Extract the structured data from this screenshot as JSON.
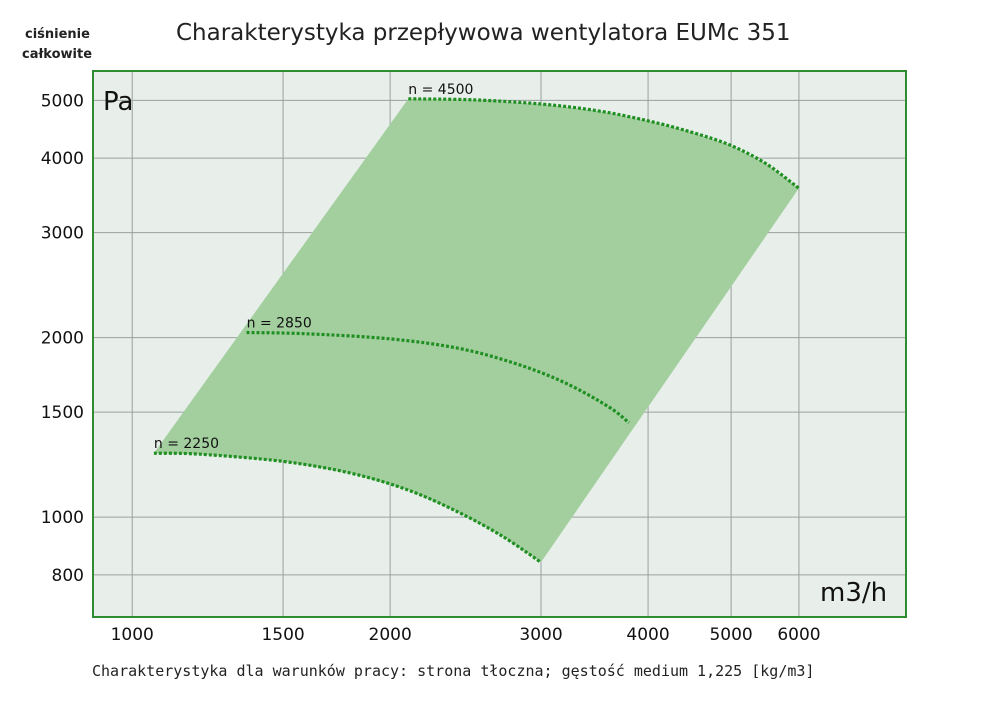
{
  "chart_data": {
    "type": "area",
    "title": "Charakterystyka przepływowa wentylatora EUMc 351",
    "ylabel": "ciśnienie całkowite",
    "y_unit": "Pa",
    "x_unit": "m3/h",
    "x_scale": "log",
    "y_scale": "log",
    "xlim": [
      900,
      8000
    ],
    "ylim": [
      680,
      5600
    ],
    "x_ticks": [
      1000,
      1500,
      2000,
      3000,
      4000,
      5000,
      6000
    ],
    "y_ticks": [
      800,
      1000,
      1500,
      2000,
      3000,
      4000,
      5000
    ],
    "grid": true,
    "footnote": "Charakterystyka dla warunków pracy: strona tłoczna; gęstość medium 1,225 [kg/m3]",
    "colors": {
      "area": "#a3cf9f",
      "curve": "#1f8f22",
      "frame": "#2e8b30",
      "plot_bg": "#e8efea",
      "grid": "#9aa09c"
    },
    "series": [
      {
        "name": "n = 2250",
        "x": [
          1060,
          1200,
          1500,
          1800,
          2100,
          2400,
          2700,
          3000
        ],
        "y": [
          1280,
          1275,
          1240,
          1185,
          1110,
          1020,
          930,
          840
        ]
      },
      {
        "name": "n = 2850",
        "x": [
          1360,
          1600,
          2000,
          2400,
          2800,
          3200,
          3600,
          3800
        ],
        "y": [
          2040,
          2030,
          1990,
          1920,
          1810,
          1680,
          1530,
          1440
        ]
      },
      {
        "name": "n = 4500",
        "x": [
          2100,
          2500,
          3000,
          3500,
          4000,
          4500,
          5000,
          5500,
          6000
        ],
        "y": [
          5030,
          5010,
          4930,
          4800,
          4620,
          4420,
          4200,
          3910,
          3560
        ]
      }
    ]
  }
}
